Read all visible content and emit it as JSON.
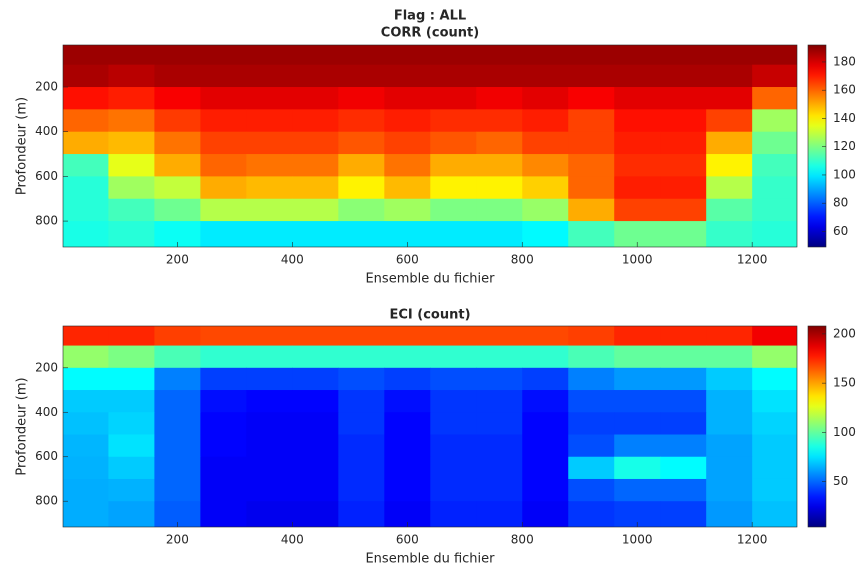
{
  "chart_data": [
    {
      "type": "heatmap",
      "title": "Flag : ALL",
      "subtitle": "CORR (count)",
      "x_label": "Ensemble du fichier",
      "y_label": "Profondeur (m)",
      "colormap": "jet",
      "y_reversed": true,
      "xlim": [
        1,
        1278
      ],
      "xticks": [
        200,
        400,
        600,
        800,
        1000,
        1200
      ],
      "ylim": [
        12,
        916
      ],
      "yticks": [
        200,
        400,
        600,
        800
      ],
      "clim": [
        49,
        192
      ],
      "cticks": [
        60,
        80,
        100,
        120,
        140,
        160,
        180
      ],
      "x": [
        40,
        120,
        200,
        280,
        360,
        440,
        520,
        600,
        680,
        760,
        840,
        920,
        1000,
        1080,
        1160,
        1240
      ],
      "y": [
        50,
        150,
        250,
        350,
        450,
        550,
        650,
        750,
        850
      ],
      "values": [
        [
          188,
          188,
          188,
          188,
          188,
          188,
          188,
          188,
          188,
          188,
          188,
          188,
          188,
          188,
          188,
          188
        ],
        [
          186,
          184,
          186,
          186,
          186,
          186,
          186,
          186,
          186,
          186,
          186,
          186,
          186,
          186,
          186,
          182
        ],
        [
          172,
          170,
          175,
          178,
          178,
          178,
          176,
          178,
          178,
          176,
          178,
          175,
          178,
          178,
          178,
          160
        ],
        [
          160,
          158,
          166,
          170,
          170,
          170,
          168,
          170,
          168,
          168,
          170,
          165,
          172,
          172,
          165,
          125
        ],
        [
          150,
          148,
          158,
          165,
          165,
          165,
          162,
          165,
          162,
          160,
          165,
          165,
          170,
          170,
          150,
          118
        ],
        [
          112,
          135,
          150,
          160,
          158,
          158,
          150,
          158,
          150,
          150,
          155,
          160,
          168,
          168,
          140,
          112
        ],
        [
          108,
          125,
          130,
          150,
          148,
          148,
          140,
          148,
          140,
          140,
          145,
          160,
          170,
          170,
          128,
          110
        ],
        [
          108,
          112,
          118,
          128,
          128,
          128,
          122,
          125,
          120,
          120,
          124,
          150,
          165,
          165,
          115,
          110
        ],
        [
          106,
          108,
          104,
          100,
          100,
          100,
          100,
          100,
          100,
          100,
          102,
          112,
          118,
          118,
          110,
          108
        ]
      ]
    },
    {
      "type": "heatmap",
      "title": "ECI (count)",
      "x_label": "Ensemble du fichier",
      "y_label": "Profondeur (m)",
      "colormap": "jet",
      "y_reversed": true,
      "xlim": [
        1,
        1278
      ],
      "xticks": [
        200,
        400,
        600,
        800,
        1000,
        1200
      ],
      "ylim": [
        12,
        916
      ],
      "yticks": [
        200,
        400,
        600,
        800
      ],
      "clim": [
        4,
        208
      ],
      "cticks": [
        50,
        100,
        150,
        200
      ],
      "x": [
        40,
        120,
        200,
        280,
        360,
        440,
        520,
        600,
        680,
        760,
        840,
        920,
        1000,
        1080,
        1160,
        1240
      ],
      "y": [
        50,
        150,
        250,
        350,
        450,
        550,
        650,
        750,
        850
      ],
      "values": [
        [
          175,
          175,
          170,
          168,
          168,
          168,
          168,
          168,
          168,
          168,
          168,
          170,
          175,
          175,
          175,
          185
        ],
        [
          110,
          105,
          95,
          90,
          90,
          90,
          90,
          90,
          90,
          90,
          90,
          95,
          100,
          100,
          100,
          110
        ],
        [
          80,
          80,
          55,
          42,
          42,
          42,
          45,
          42,
          45,
          45,
          42,
          55,
          60,
          60,
          70,
          80
        ],
        [
          70,
          70,
          50,
          32,
          30,
          30,
          40,
          32,
          40,
          40,
          32,
          45,
          45,
          45,
          65,
          75
        ],
        [
          68,
          72,
          50,
          30,
          28,
          28,
          40,
          30,
          40,
          40,
          30,
          42,
          42,
          42,
          65,
          72
        ],
        [
          66,
          75,
          50,
          30,
          28,
          28,
          38,
          30,
          38,
          38,
          30,
          45,
          55,
          55,
          62,
          70
        ],
        [
          65,
          70,
          50,
          28,
          28,
          28,
          38,
          30,
          38,
          38,
          30,
          70,
          85,
          80,
          62,
          70
        ],
        [
          64,
          65,
          50,
          28,
          28,
          28,
          38,
          30,
          38,
          38,
          30,
          45,
          50,
          50,
          62,
          70
        ],
        [
          64,
          62,
          48,
          28,
          26,
          26,
          36,
          28,
          36,
          36,
          28,
          40,
          42,
          42,
          60,
          68
        ]
      ]
    }
  ]
}
